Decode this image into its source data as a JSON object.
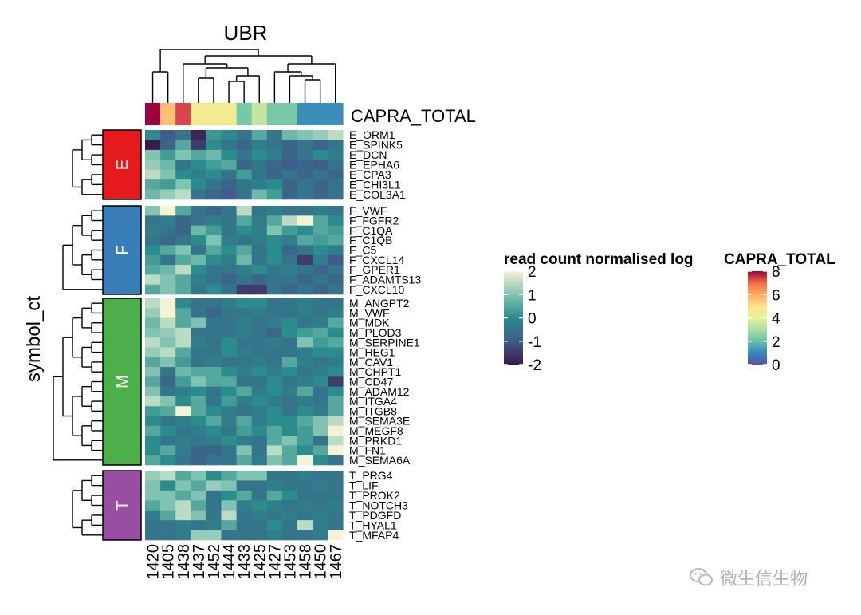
{
  "title": "UBR",
  "row_title": "symbol_ct",
  "annotation_title": "CAPRA_TOTAL",
  "watermark_text": "微生信生物",
  "colors": {
    "groups": {
      "E": "#e41a1c",
      "F": "#377eb8",
      "M": "#4daf4a",
      "T": "#984ea3"
    },
    "heat_low": "#3a1a4f",
    "heat_mid": "#2a8c8c",
    "heat_high": "#f6f3d5",
    "annotation_scale": [
      "#5e4fa2",
      "#3288bd",
      "#66c2a5",
      "#abdda4",
      "#e6f598",
      "#fee08b",
      "#fdae61",
      "#f46d43",
      "#d53e4f",
      "#9e0142"
    ]
  },
  "chart_data": {
    "type": "heatmap",
    "title": "UBR",
    "ylabel": "symbol_ct",
    "columns": [
      "1420",
      "1405",
      "1438",
      "1437",
      "1452",
      "1444",
      "1433",
      "1425",
      "1427",
      "1453",
      "1458",
      "1450",
      "1467"
    ],
    "capra_total": [
      8,
      5,
      7,
      4,
      4,
      4,
      2,
      3,
      2,
      2,
      1,
      1,
      1
    ],
    "groups": [
      {
        "name": "E",
        "rows": [
          "E_ORM1",
          "E_SPINK5",
          "E_DCN",
          "E_EPHA6",
          "E_CPA3",
          "E_CHI3L1",
          "E_COL3A1"
        ]
      },
      {
        "name": "F",
        "rows": [
          "F_VWF",
          "F_FGFR2",
          "F_C1QA",
          "F_C1QB",
          "F_C5",
          "F_CXCL14",
          "F_GPER1",
          "F_ADAMTS13",
          "F_CXCL10"
        ]
      },
      {
        "name": "M",
        "rows": [
          "M_ANGPT2",
          "M_VWF",
          "M_MDK",
          "M_PLOD3",
          "M_SERPINE1",
          "M_HEG1",
          "M_CAV1",
          "M_CHPT1",
          "M_CD47",
          "M_ADAM12",
          "M_ITGA4",
          "M_ITGB8",
          "M_SEMA3E",
          "M_MEGF8",
          "M_PRKD1",
          "M_FN1",
          "M_SEMA6A"
        ]
      },
      {
        "name": "T",
        "rows": [
          "T_PRG4",
          "T_LIF",
          "T_PROK2",
          "T_NOTCH3",
          "T_PDGFD",
          "T_HYAL1",
          "T_MFAP4"
        ]
      }
    ],
    "values": {
      "E": [
        [
          0.0,
          -1.0,
          -0.5,
          -1.8,
          0.2,
          0.0,
          -0.5,
          0.5,
          -0.5,
          0.8,
          1.0,
          1.2,
          1.5
        ],
        [
          -2.0,
          -0.8,
          0.5,
          -1.5,
          0.0,
          -0.5,
          -0.8,
          -0.3,
          -0.5,
          -0.8,
          -0.5,
          -0.8,
          -0.5
        ],
        [
          1.0,
          0.3,
          1.0,
          0.5,
          0.8,
          0.0,
          -0.5,
          0.0,
          -0.3,
          -0.8,
          -0.5,
          0.0,
          -0.3
        ],
        [
          1.2,
          0.8,
          -0.5,
          0.0,
          0.3,
          0.5,
          -0.8,
          -0.5,
          -0.8,
          -1.0,
          -0.8,
          -1.0,
          -0.5
        ],
        [
          1.5,
          1.0,
          0.0,
          -0.3,
          0.0,
          -0.5,
          0.3,
          -0.5,
          -0.8,
          -0.5,
          -0.8,
          -0.5,
          -0.8
        ],
        [
          0.5,
          0.3,
          1.0,
          0.0,
          -0.5,
          -0.8,
          -0.5,
          -0.3,
          0.0,
          -0.8,
          -0.5,
          -0.8,
          -0.5
        ],
        [
          0.8,
          1.2,
          1.5,
          -0.5,
          -0.8,
          -1.0,
          -0.5,
          0.8,
          0.3,
          -0.8,
          -0.5,
          -0.8,
          -0.5
        ]
      ],
      "F": [
        [
          1.0,
          2.0,
          0.5,
          -0.5,
          -0.8,
          -0.5,
          1.5,
          -0.5,
          -0.3,
          -0.5,
          -0.5,
          -0.3,
          -0.5
        ],
        [
          -0.5,
          -0.3,
          -0.8,
          -0.5,
          -0.3,
          -0.5,
          0.5,
          -0.3,
          0.5,
          1.5,
          2.0,
          0.5,
          0.0
        ],
        [
          -0.3,
          -0.5,
          -0.8,
          0.8,
          0.3,
          -0.5,
          0.0,
          -0.3,
          1.0,
          0.3,
          0.0,
          0.5,
          0.3
        ],
        [
          -0.5,
          -0.8,
          -0.5,
          0.0,
          1.0,
          -0.3,
          -0.5,
          -0.3,
          0.0,
          -0.3,
          0.5,
          0.3,
          0.5
        ],
        [
          0.0,
          0.5,
          1.0,
          -0.5,
          0.5,
          0.0,
          0.5,
          -0.5,
          0.0,
          -0.8,
          -0.5,
          0.0,
          -0.3
        ],
        [
          0.3,
          -0.5,
          0.5,
          0.8,
          0.0,
          -0.3,
          0.8,
          -0.5,
          0.0,
          -0.5,
          -1.5,
          -0.3,
          -1.0
        ],
        [
          0.5,
          0.8,
          1.5,
          0.0,
          -0.5,
          -0.5,
          -0.3,
          0.0,
          -0.5,
          -0.3,
          -0.5,
          -0.8,
          -0.5
        ],
        [
          1.5,
          1.0,
          0.5,
          -0.3,
          -0.5,
          -0.8,
          -0.5,
          -0.8,
          -0.5,
          -0.5,
          -0.8,
          -0.5,
          -0.8
        ],
        [
          0.5,
          1.0,
          0.5,
          -0.5,
          0.0,
          -0.5,
          -1.5,
          -1.5,
          -0.5,
          -0.8,
          -0.5,
          -0.8,
          -0.5
        ]
      ],
      "M": [
        [
          1.5,
          2.0,
          0.0,
          -0.5,
          -0.5,
          -0.3,
          0.0,
          0.0,
          -0.5,
          -0.5,
          -0.3,
          -0.5,
          -0.5
        ],
        [
          1.2,
          2.0,
          0.5,
          -0.5,
          -0.8,
          -0.5,
          -0.5,
          -0.3,
          -0.5,
          -0.5,
          -0.3,
          -0.5,
          -0.3
        ],
        [
          0.8,
          1.5,
          0.5,
          1.0,
          -0.5,
          -0.5,
          -0.3,
          -0.5,
          -0.3,
          0.0,
          -0.5,
          -0.3,
          0.5
        ],
        [
          1.0,
          1.2,
          1.5,
          -0.5,
          -0.5,
          -0.5,
          -0.3,
          -0.5,
          -0.8,
          0.0,
          0.3,
          0.5,
          0.0
        ],
        [
          1.5,
          1.0,
          1.5,
          -0.3,
          -0.5,
          0.0,
          -0.5,
          -0.5,
          -0.3,
          -0.5,
          1.0,
          0.3,
          0.5
        ],
        [
          1.2,
          1.5,
          0.5,
          -0.5,
          -0.5,
          0.0,
          -0.3,
          -0.5,
          -0.5,
          -0.5,
          -0.3,
          0.0,
          0.0
        ],
        [
          0.5,
          1.0,
          0.3,
          -0.5,
          -0.3,
          -0.5,
          -0.5,
          -0.3,
          -0.5,
          0.5,
          -0.3,
          -0.5,
          -0.3
        ],
        [
          1.0,
          -0.5,
          0.8,
          0.5,
          0.5,
          0.0,
          -0.3,
          0.0,
          -0.3,
          0.0,
          -0.5,
          -0.3,
          0.0
        ],
        [
          0.5,
          -0.8,
          0.3,
          1.0,
          0.5,
          0.5,
          -0.5,
          -0.5,
          0.0,
          -0.5,
          -0.3,
          0.0,
          -1.5
        ],
        [
          1.0,
          -0.5,
          -0.3,
          0.0,
          -0.5,
          0.0,
          0.5,
          -0.3,
          0.0,
          -0.3,
          0.5,
          -0.5,
          0.0
        ],
        [
          1.5,
          1.0,
          0.0,
          0.5,
          -0.5,
          0.3,
          -0.3,
          0.0,
          -0.3,
          -0.5,
          -0.3,
          -0.5,
          0.5
        ],
        [
          0.3,
          0.5,
          2.0,
          0.5,
          0.0,
          -0.3,
          -0.5,
          -0.3,
          0.0,
          -0.5,
          0.0,
          -0.3,
          0.5
        ],
        [
          0.0,
          -0.5,
          -0.3,
          0.0,
          0.5,
          -0.3,
          0.5,
          -0.3,
          0.0,
          0.0,
          0.5,
          1.0,
          1.5
        ],
        [
          0.5,
          0.0,
          -0.5,
          -0.3,
          0.0,
          -0.5,
          0.3,
          0.0,
          0.5,
          0.0,
          0.3,
          1.0,
          2.0
        ],
        [
          0.0,
          -0.5,
          -0.3,
          -0.5,
          -0.3,
          0.0,
          -0.3,
          -0.5,
          0.5,
          1.0,
          0.3,
          -0.5,
          1.5
        ],
        [
          0.0,
          0.5,
          -0.3,
          -0.8,
          -0.8,
          -0.5,
          1.0,
          -0.5,
          1.5,
          0.5,
          0.0,
          0.5,
          2.0
        ],
        [
          0.5,
          0.0,
          -0.5,
          -0.8,
          -0.5,
          -0.5,
          0.5,
          -0.3,
          1.0,
          0.5,
          2.0,
          0.0,
          -0.5
        ]
      ],
      "T": [
        [
          1.2,
          1.5,
          0.5,
          1.0,
          0.0,
          0.5,
          1.0,
          1.0,
          -0.5,
          -0.5,
          -0.3,
          -0.5,
          -0.5
        ],
        [
          1.0,
          0.0,
          1.0,
          0.5,
          1.2,
          1.0,
          -0.5,
          -0.5,
          -0.3,
          -0.5,
          -0.5,
          -0.3,
          -0.5
        ],
        [
          1.0,
          1.0,
          0.5,
          1.0,
          -0.5,
          0.0,
          0.5,
          -0.5,
          0.5,
          0.0,
          -0.5,
          -0.5,
          -0.5
        ],
        [
          0.5,
          1.0,
          1.5,
          0.5,
          -0.5,
          1.0,
          -0.3,
          0.0,
          -0.3,
          -0.5,
          -0.3,
          -0.5,
          -0.3
        ],
        [
          -0.3,
          0.5,
          1.5,
          1.0,
          -0.5,
          1.5,
          -0.5,
          -0.3,
          -0.5,
          -0.3,
          -0.5,
          -0.3,
          -0.5
        ],
        [
          -0.5,
          -0.5,
          -0.3,
          -0.5,
          -0.3,
          0.5,
          -0.5,
          -0.5,
          0.0,
          -0.5,
          1.5,
          -0.3,
          -0.5
        ],
        [
          -0.5,
          -0.5,
          -0.3,
          1.2,
          1.2,
          -0.5,
          -0.5,
          -0.5,
          -0.3,
          -0.5,
          -0.5,
          -0.3,
          2.0
        ]
      ]
    },
    "legends": [
      {
        "title": "read count normalised log",
        "min": -2,
        "max": 2,
        "ticks": [
          2,
          1,
          0,
          -1,
          -2
        ]
      },
      {
        "title": "CAPRA_TOTAL",
        "min": 0,
        "max": 8,
        "ticks": [
          8,
          6,
          4,
          2,
          0
        ]
      }
    ]
  }
}
